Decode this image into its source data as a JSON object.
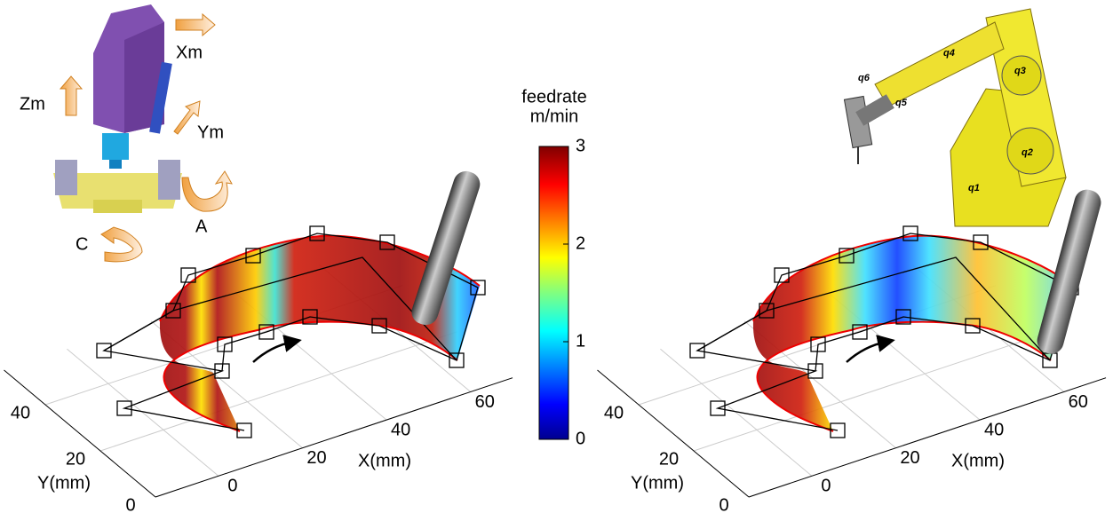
{
  "machine_tool": {
    "axes": [
      "Xm",
      "Zm",
      "Ym",
      "A",
      "C"
    ]
  },
  "robot": {
    "joints": [
      "q1",
      "q2",
      "q3",
      "q4",
      "q5",
      "q6"
    ]
  },
  "colorbar": {
    "title": [
      "feedrate",
      "m/min"
    ],
    "range": [
      0,
      3
    ],
    "ticks": [
      0,
      1,
      2,
      3
    ]
  },
  "plots": [
    {
      "x_label": "X(mm)",
      "y_label": "Y(mm)",
      "x_ticks": [
        0,
        20,
        40,
        60
      ],
      "y_ticks": [
        0,
        20,
        40
      ]
    },
    {
      "x_label": "X(mm)",
      "y_label": "Y(mm)",
      "x_ticks": [
        0,
        20,
        40,
        60
      ],
      "y_ticks": [
        0,
        20,
        40
      ]
    }
  ]
}
